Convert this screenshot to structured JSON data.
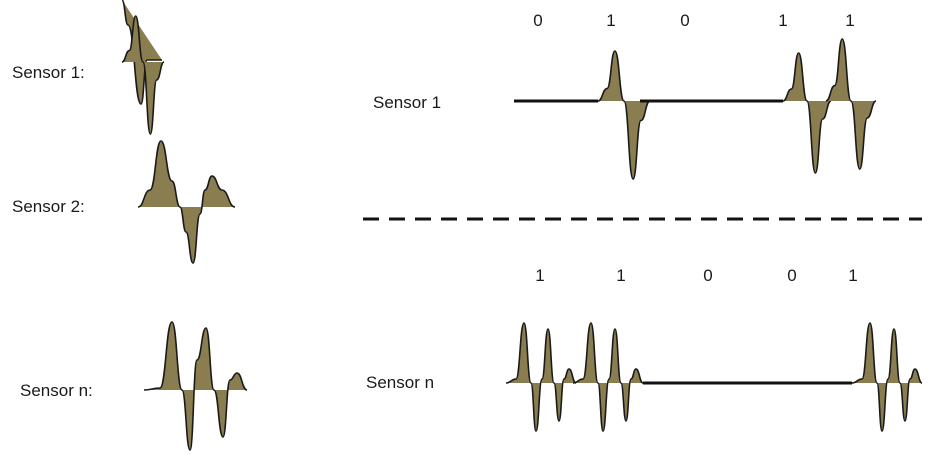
{
  "colors": {
    "fill": "#8a7d50",
    "stroke": "#1a1a1a",
    "line": "#111111"
  },
  "left_panel": {
    "sensors": [
      {
        "label": "Sensor 1:",
        "wave": "sensor-1"
      },
      {
        "label": "Sensor 2:",
        "wave": "sensor-2"
      },
      {
        "label": "Sensor n:",
        "wave": "sensor-n"
      }
    ]
  },
  "right_panel": {
    "sensor_1": {
      "label": "Sensor 1",
      "bits": [
        "0",
        "1",
        "0",
        "1",
        "1"
      ]
    },
    "sensor_n": {
      "label": "Sensor n",
      "bits": [
        "1",
        "1",
        "0",
        "0",
        "1"
      ]
    }
  }
}
